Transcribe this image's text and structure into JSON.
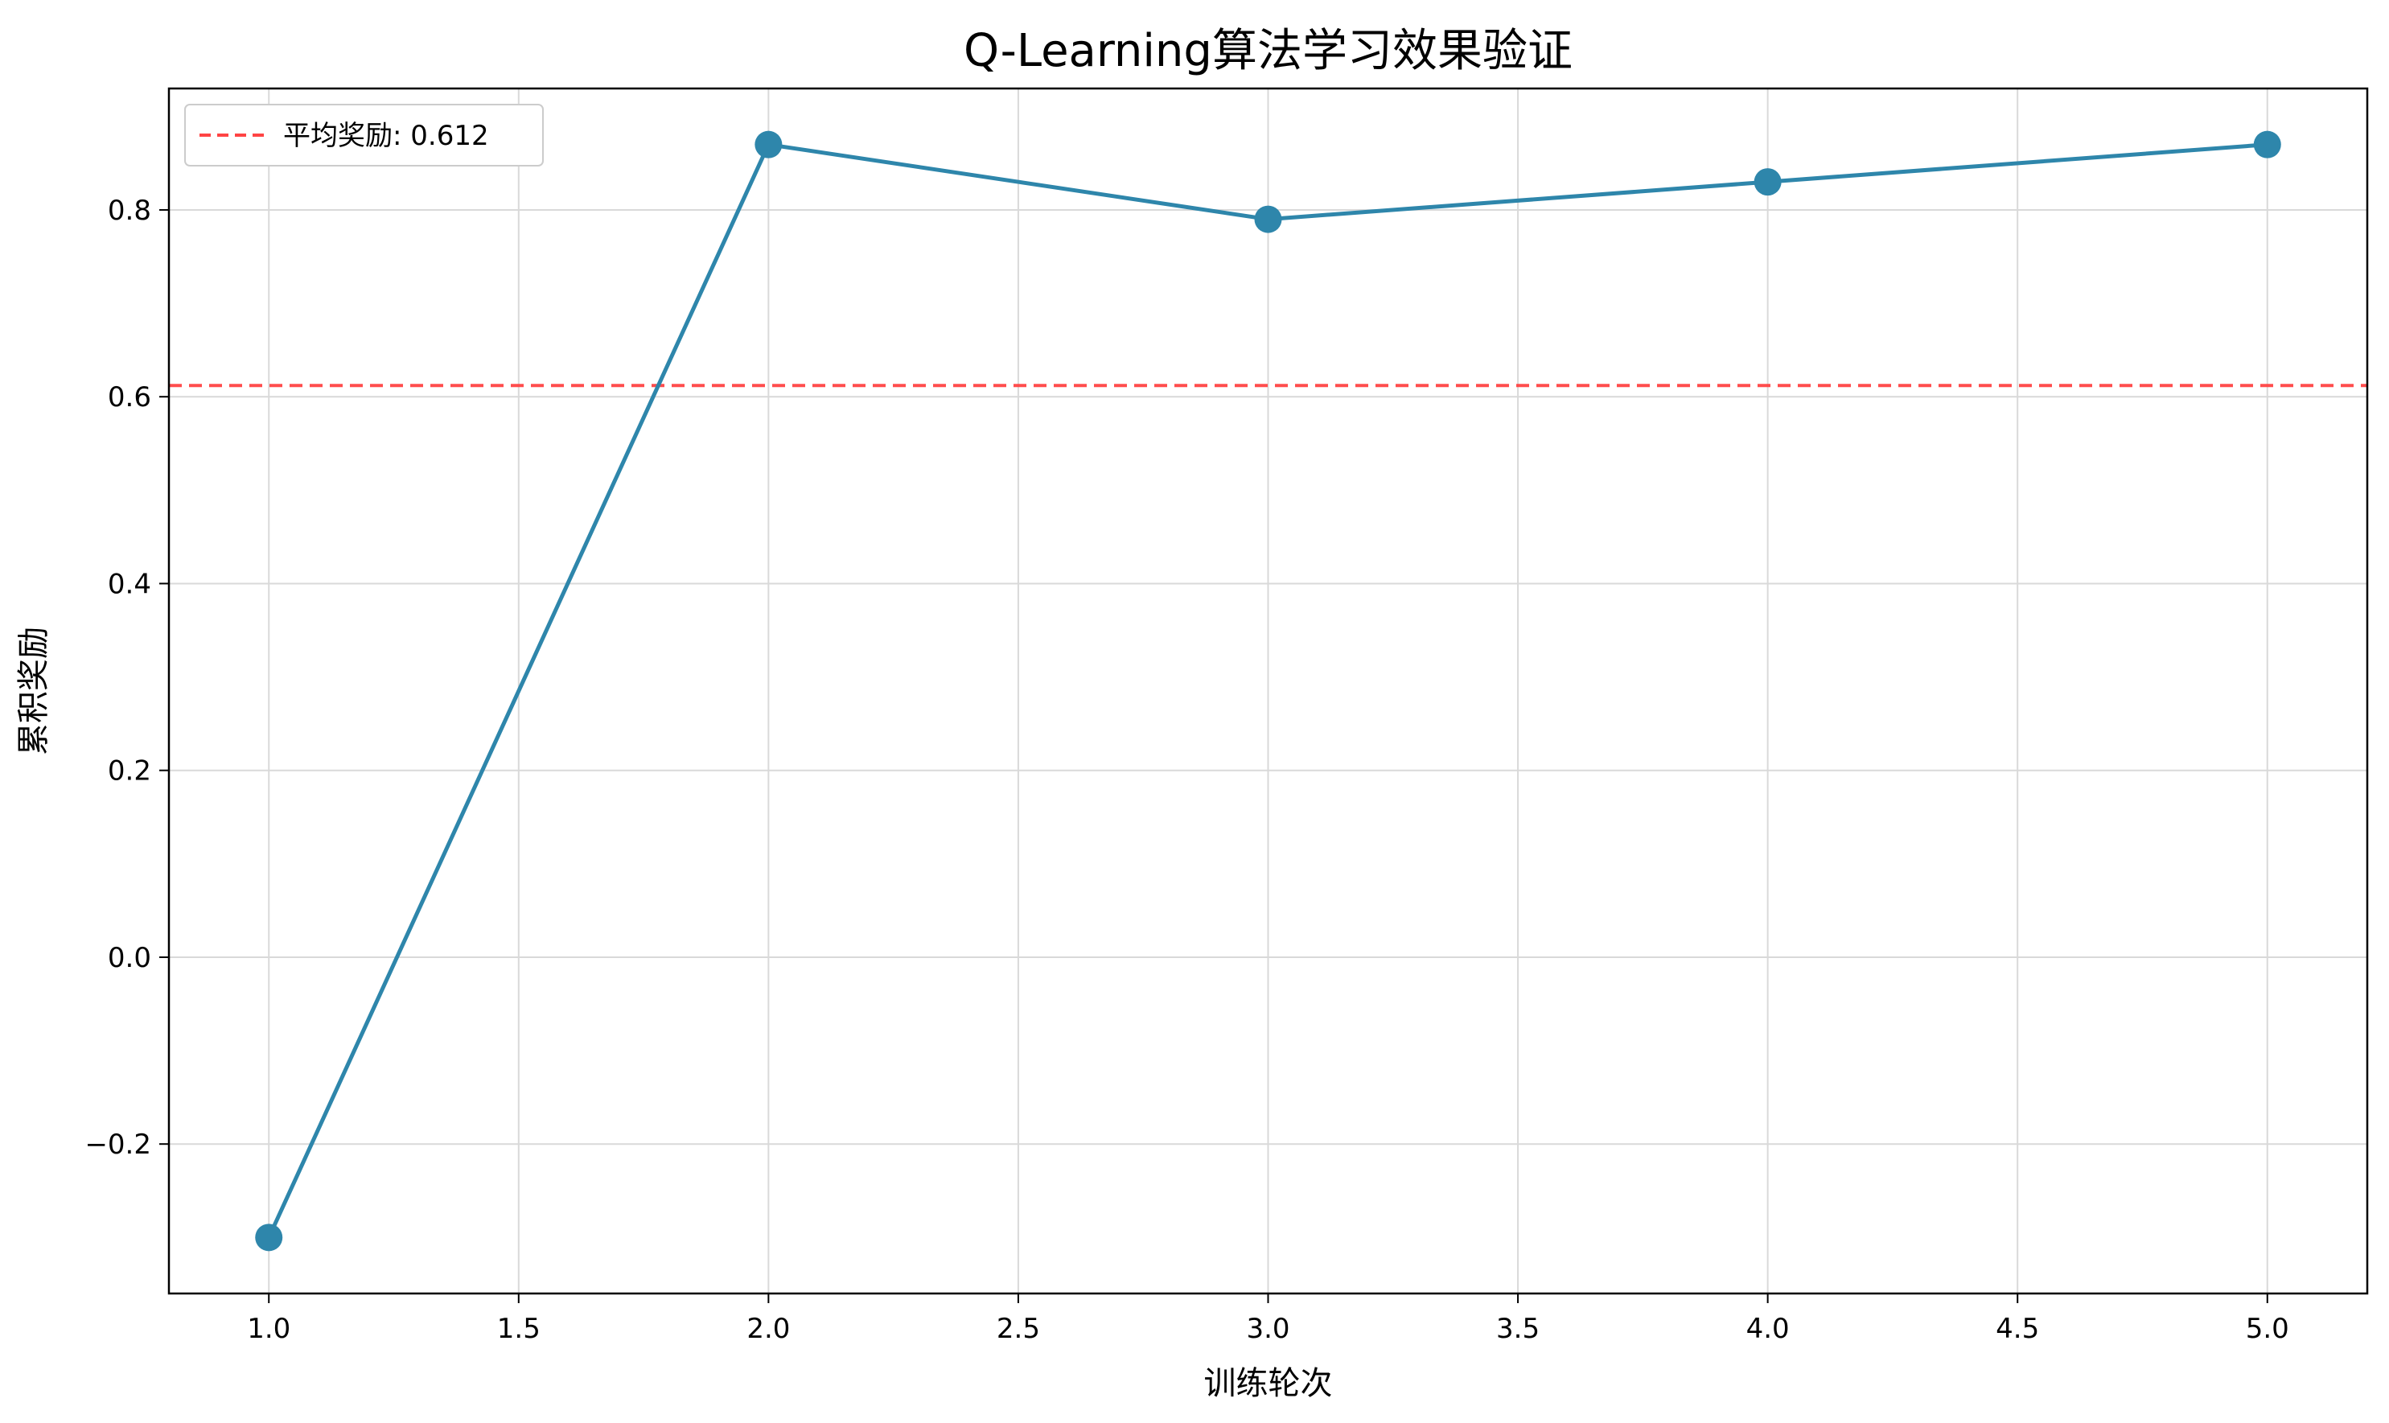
{
  "chart_data": {
    "type": "line",
    "title": "Q-Learning算法学习效果验证",
    "xlabel": "训练轮次",
    "ylabel": "累积奖励",
    "xlim": [
      0.8,
      5.2
    ],
    "ylim": [
      -0.36,
      0.93
    ],
    "x_ticks": [
      1.0,
      1.5,
      2.0,
      2.5,
      3.0,
      3.5,
      4.0,
      4.5,
      5.0
    ],
    "x_tick_labels": [
      "1.0",
      "1.5",
      "2.0",
      "2.5",
      "3.0",
      "3.5",
      "4.0",
      "4.5",
      "5.0"
    ],
    "y_ticks": [
      -0.2,
      0.0,
      0.2,
      0.4,
      0.6,
      0.8
    ],
    "y_tick_labels": [
      "−0.2",
      "0.0",
      "0.2",
      "0.4",
      "0.6",
      "0.8"
    ],
    "grid": true,
    "legend_position": "top-left",
    "series": [
      {
        "x": [
          1,
          2,
          3,
          4,
          5
        ],
        "values": [
          -0.3,
          0.87,
          0.79,
          0.83,
          0.87
        ],
        "color": "#2e86ab",
        "marker": "circle"
      }
    ],
    "reference_lines": [
      {
        "orientation": "horizontal",
        "value": 0.612,
        "label": "平均奖励: 0.612",
        "color": "#ff4444",
        "style": "dashed"
      }
    ]
  }
}
